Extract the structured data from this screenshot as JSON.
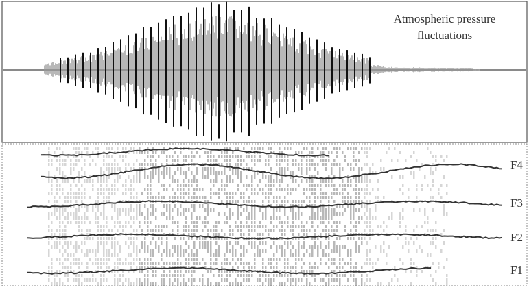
{
  "waveform": {
    "label": [
      "Atmospheric pressure",
      "fluctuations"
    ]
  },
  "spectrogram": {
    "formants": [
      "F4",
      "F3",
      "F2",
      "F1"
    ]
  }
}
